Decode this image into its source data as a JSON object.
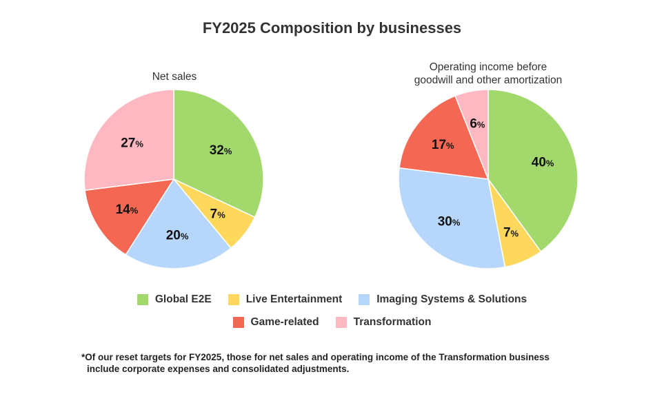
{
  "title": "FY2025 Composition by businesses",
  "colors": {
    "Global E2E": "#a3d86d",
    "Live Entertainment": "#fed85d",
    "Imaging Systems & Solutions": "#b7d6fb",
    "Game-related": "#f46753",
    "Transformation": "#feb8c1"
  },
  "legend": {
    "row1": [
      "Global E2E",
      "Live Entertainment",
      "Imaging Systems & Solutions"
    ],
    "row2": [
      "Game-related",
      "Transformation"
    ]
  },
  "footnote": {
    "line1": "*Of our reset targets for FY2025, those for net sales and operating income of the Transformation business",
    "line2": "include corporate expenses and consolidated adjustments."
  },
  "chart_data": [
    {
      "type": "pie",
      "title": "Net sales",
      "unit": "%",
      "slices": [
        {
          "label": "Global E2E",
          "value": 32
        },
        {
          "label": "Live Entertainment",
          "value": 7
        },
        {
          "label": "Imaging Systems & Solutions",
          "value": 20
        },
        {
          "label": "Game-related",
          "value": 14
        },
        {
          "label": "Transformation",
          "value": 27
        }
      ]
    },
    {
      "type": "pie",
      "title_line1": "Operating income before",
      "title_line2": "goodwill and other amortization",
      "unit": "%",
      "slices": [
        {
          "label": "Global E2E",
          "value": 40
        },
        {
          "label": "Live Entertainment",
          "value": 7
        },
        {
          "label": "Imaging Systems & Solutions",
          "value": 30
        },
        {
          "label": "Game-related",
          "value": 17
        },
        {
          "label": "Transformation",
          "value": 6
        }
      ]
    }
  ]
}
